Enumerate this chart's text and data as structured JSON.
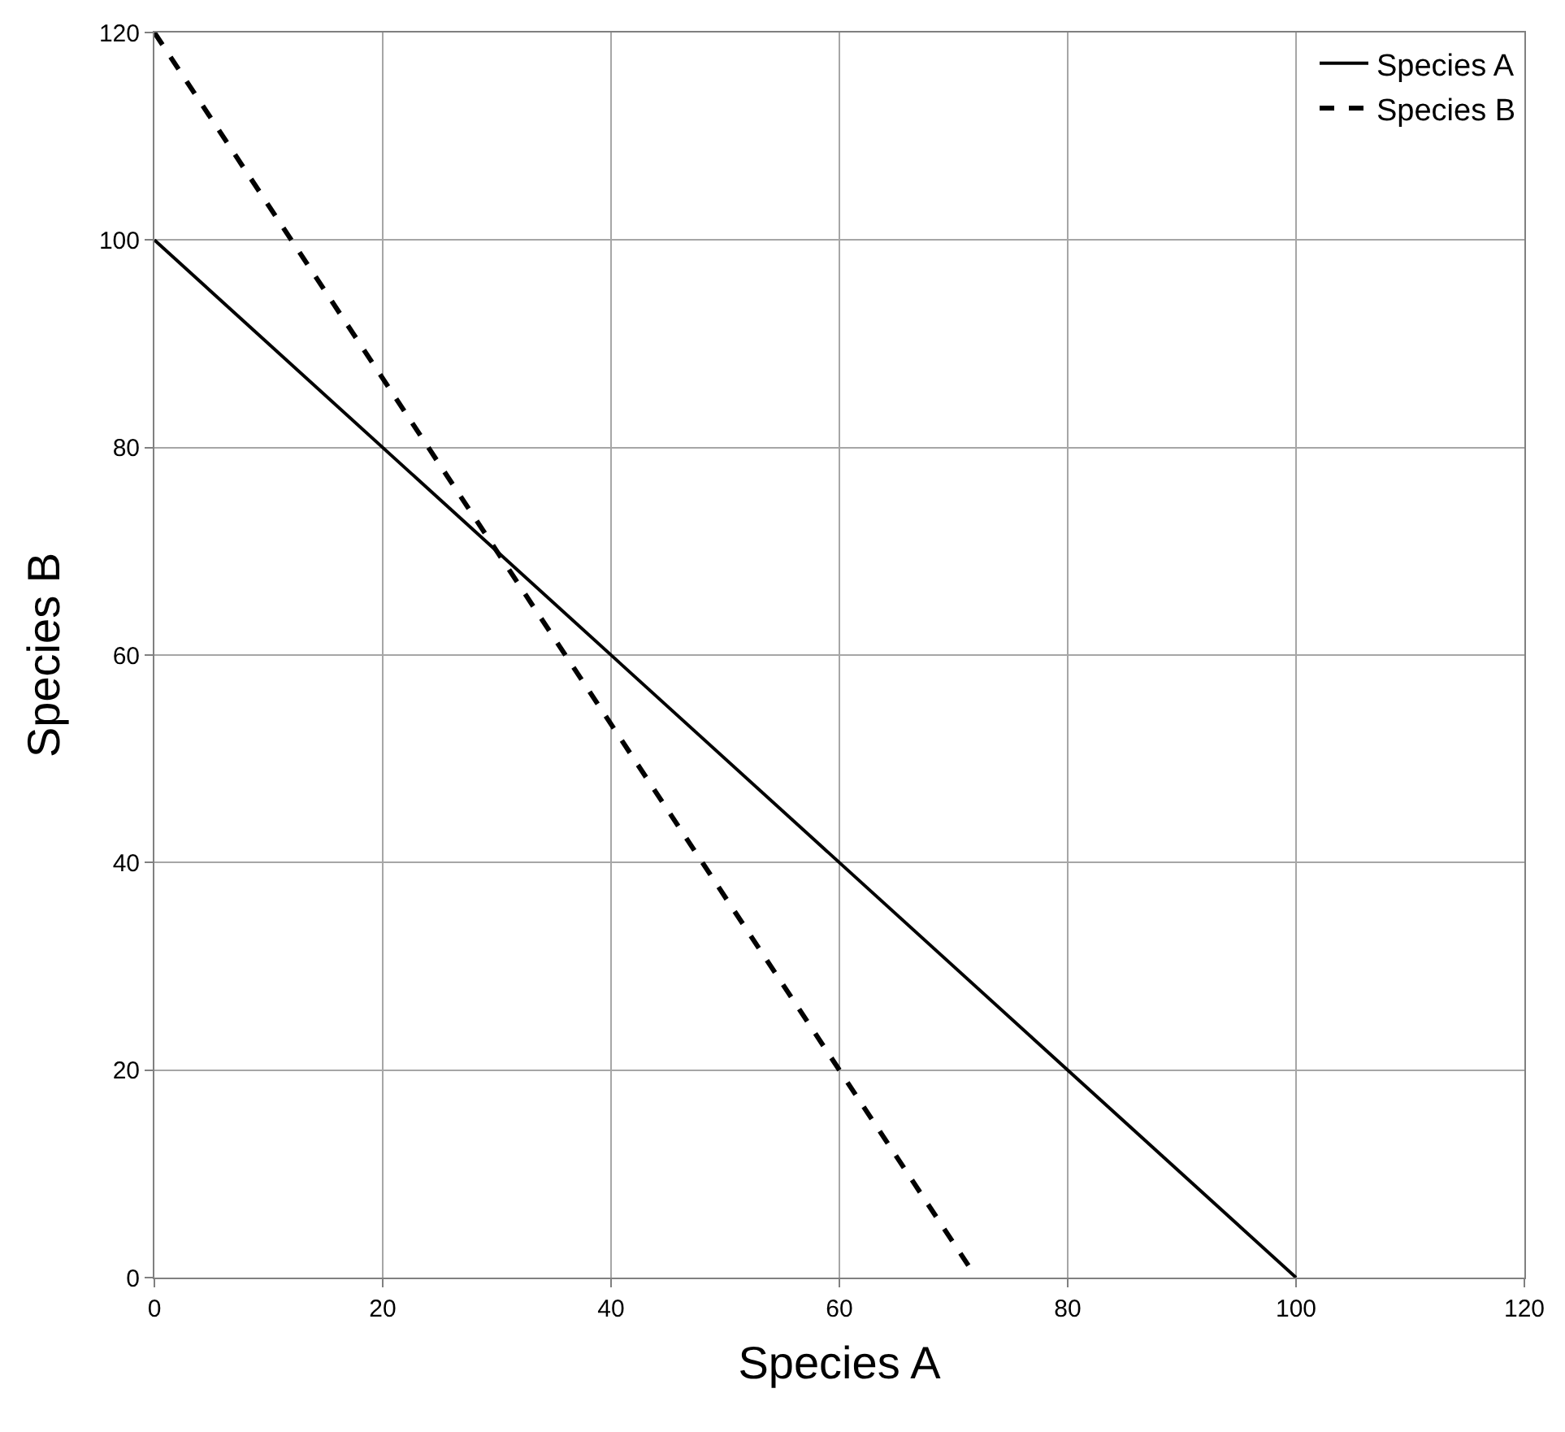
{
  "chart_data": {
    "type": "line",
    "xlabel": "Species A",
    "ylabel": "Species B",
    "series": [
      {
        "name": "Species A",
        "color": "#000000",
        "x": [
          0,
          100
        ],
        "values": [
          100,
          0
        ],
        "line_style": "solid"
      },
      {
        "name": "Species B",
        "color": "#000000",
        "x": [
          0,
          72
        ],
        "values": [
          120,
          0
        ],
        "line_style": "dashed"
      }
    ],
    "xlim": [
      0,
      120
    ],
    "ylim": [
      0,
      120
    ],
    "xticks": [
      0,
      20,
      40,
      60,
      80,
      100,
      120
    ],
    "yticks": [
      0,
      20,
      40,
      60,
      80,
      100,
      120
    ],
    "grid": true,
    "legend": "top right",
    "marker": "none"
  }
}
